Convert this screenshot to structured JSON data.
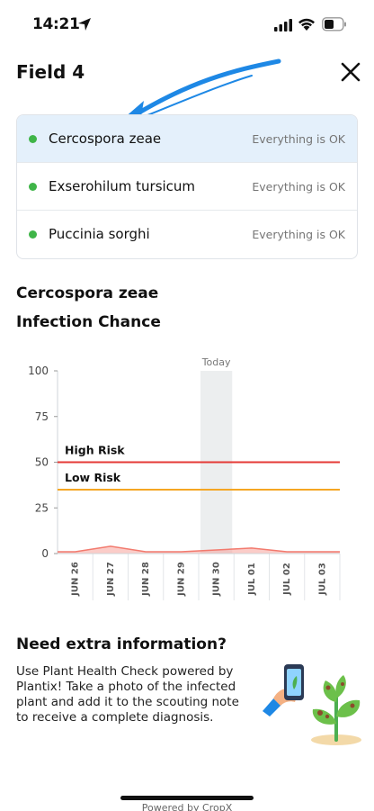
{
  "status_bar": {
    "time": "14:21",
    "icons": [
      "location-arrow-icon",
      "cellular-signal-icon",
      "wifi-icon",
      "battery-icon"
    ]
  },
  "header": {
    "title": "Field 4",
    "close_icon": "close-icon"
  },
  "diseases": [
    {
      "name": "Cercospora zeae",
      "status": "Everything is OK",
      "selected": true
    },
    {
      "name": "Exserohilum tursicum",
      "status": "Everything is OK",
      "selected": false
    },
    {
      "name": "Puccinia sorghi",
      "status": "Everything is OK",
      "selected": false
    }
  ],
  "colors": {
    "status_ok": "#3fb548",
    "selected_row": "#e4f0fb",
    "high_risk": "#e53935",
    "low_risk": "#f5a623",
    "infection": "#f7a39b",
    "arrow": "#1e88e5"
  },
  "selected_disease": "Cercospora zeae",
  "chart_title": "Infection Chance",
  "chart_data": {
    "type": "area",
    "title": "Infection Chance",
    "categories": [
      "JUN 26",
      "JUN 27",
      "JUN 28",
      "JUN 29",
      "JUN 30",
      "JUL 01",
      "JUL 02",
      "JUL 03"
    ],
    "series": [
      {
        "values": [
          1,
          4,
          1,
          1,
          2,
          3,
          1,
          1
        ]
      }
    ],
    "thresholds": [
      {
        "label": "High Risk",
        "value": 50
      },
      {
        "label": "Low Risk",
        "value": 35
      }
    ],
    "highlight": {
      "label": "Today",
      "category": "JUN 30"
    },
    "yticks": [
      0,
      25,
      50,
      75,
      100
    ],
    "ylim": [
      0,
      100
    ]
  },
  "info": {
    "title": "Need extra information?",
    "text": "Use Plant Health Check powered by Plantix! Take a photo of the infected plant and add it to the scouting note to receive a complete diagnosis."
  },
  "footer": {
    "text": "Powered by CropX"
  }
}
